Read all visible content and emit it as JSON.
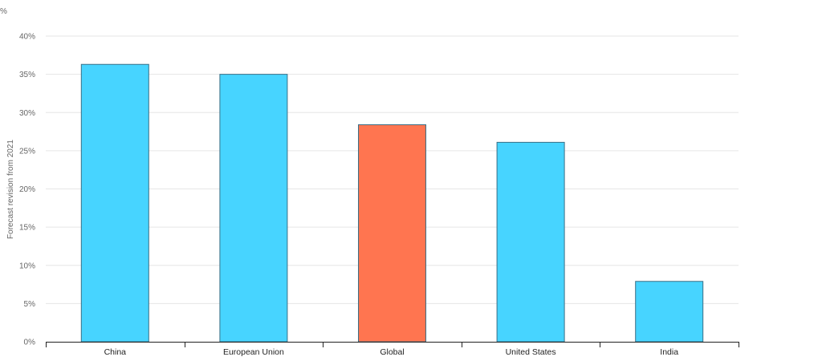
{
  "chart_data": {
    "type": "bar",
    "categories": [
      "China",
      "European Union",
      "Global",
      "United States",
      "India"
    ],
    "values": [
      36.3,
      35.0,
      28.4,
      26.1,
      7.9
    ],
    "bar_colors": [
      "#47d4ff",
      "#47d4ff",
      "#ff7550",
      "#47d4ff",
      "#47d4ff"
    ],
    "bar_stroke": "#3a6f86",
    "ylabel": "Forecast revision from 2021",
    "unit": "%",
    "ylim": [
      0,
      40
    ],
    "yticks": [
      0,
      5,
      10,
      15,
      20,
      25,
      30,
      35,
      40
    ],
    "ytick_labels": [
      "0%",
      "5%",
      "10%",
      "15%",
      "20%",
      "25%",
      "30%",
      "35%",
      "40%"
    ],
    "grid": true,
    "grid_color": "#e6e6e6"
  }
}
